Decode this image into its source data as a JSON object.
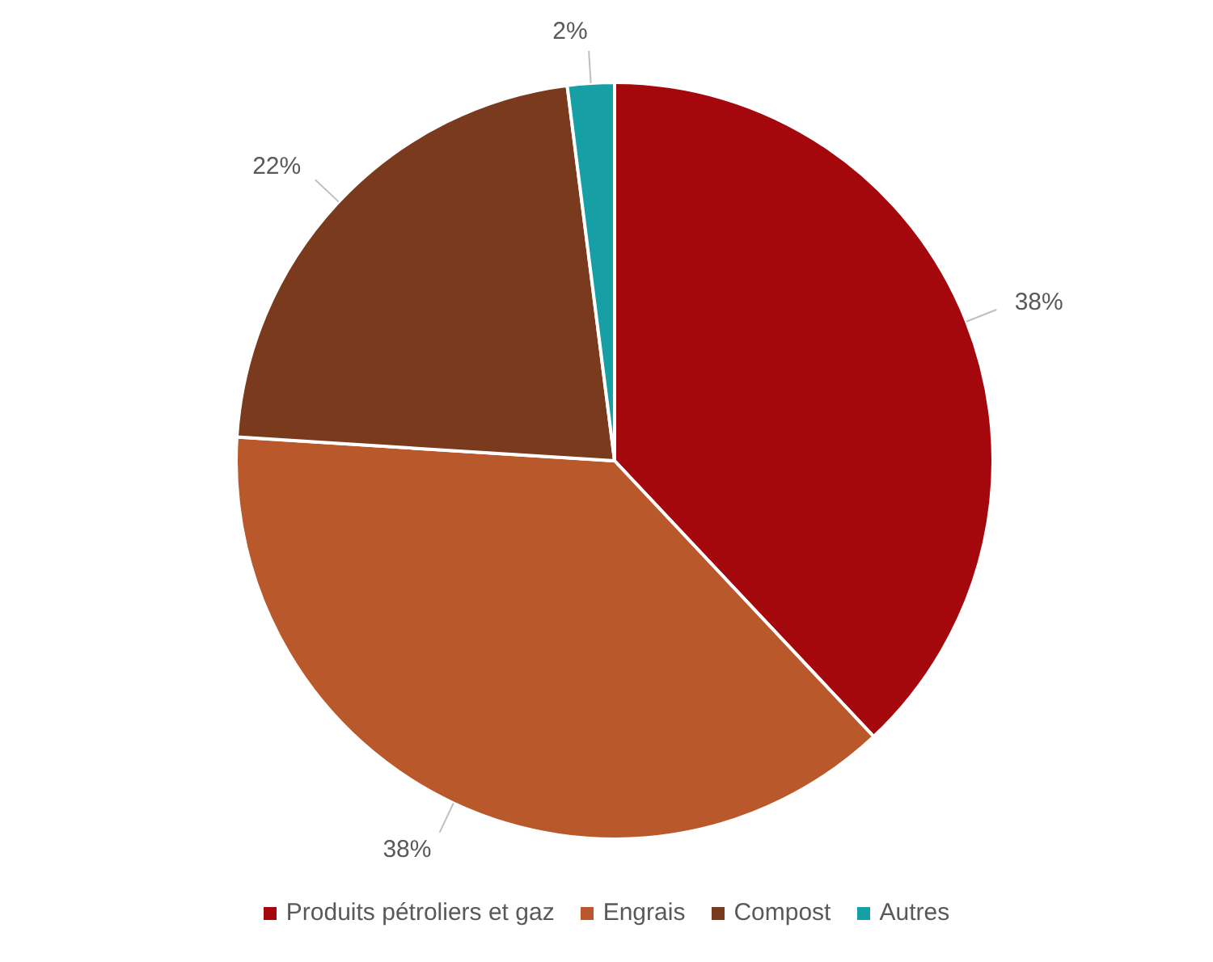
{
  "chart_data": {
    "type": "pie",
    "categories": [
      "Produits pétroliers et gaz",
      "Engrais",
      "Compost",
      "Autres"
    ],
    "values": [
      38,
      38,
      22,
      2
    ],
    "colors": [
      "#a5080c",
      "#b9582a",
      "#7a3a1d",
      "#16a0a6"
    ],
    "value_labels": [
      "38%",
      "38%",
      "22%",
      "2%"
    ],
    "legend": "bottom"
  }
}
